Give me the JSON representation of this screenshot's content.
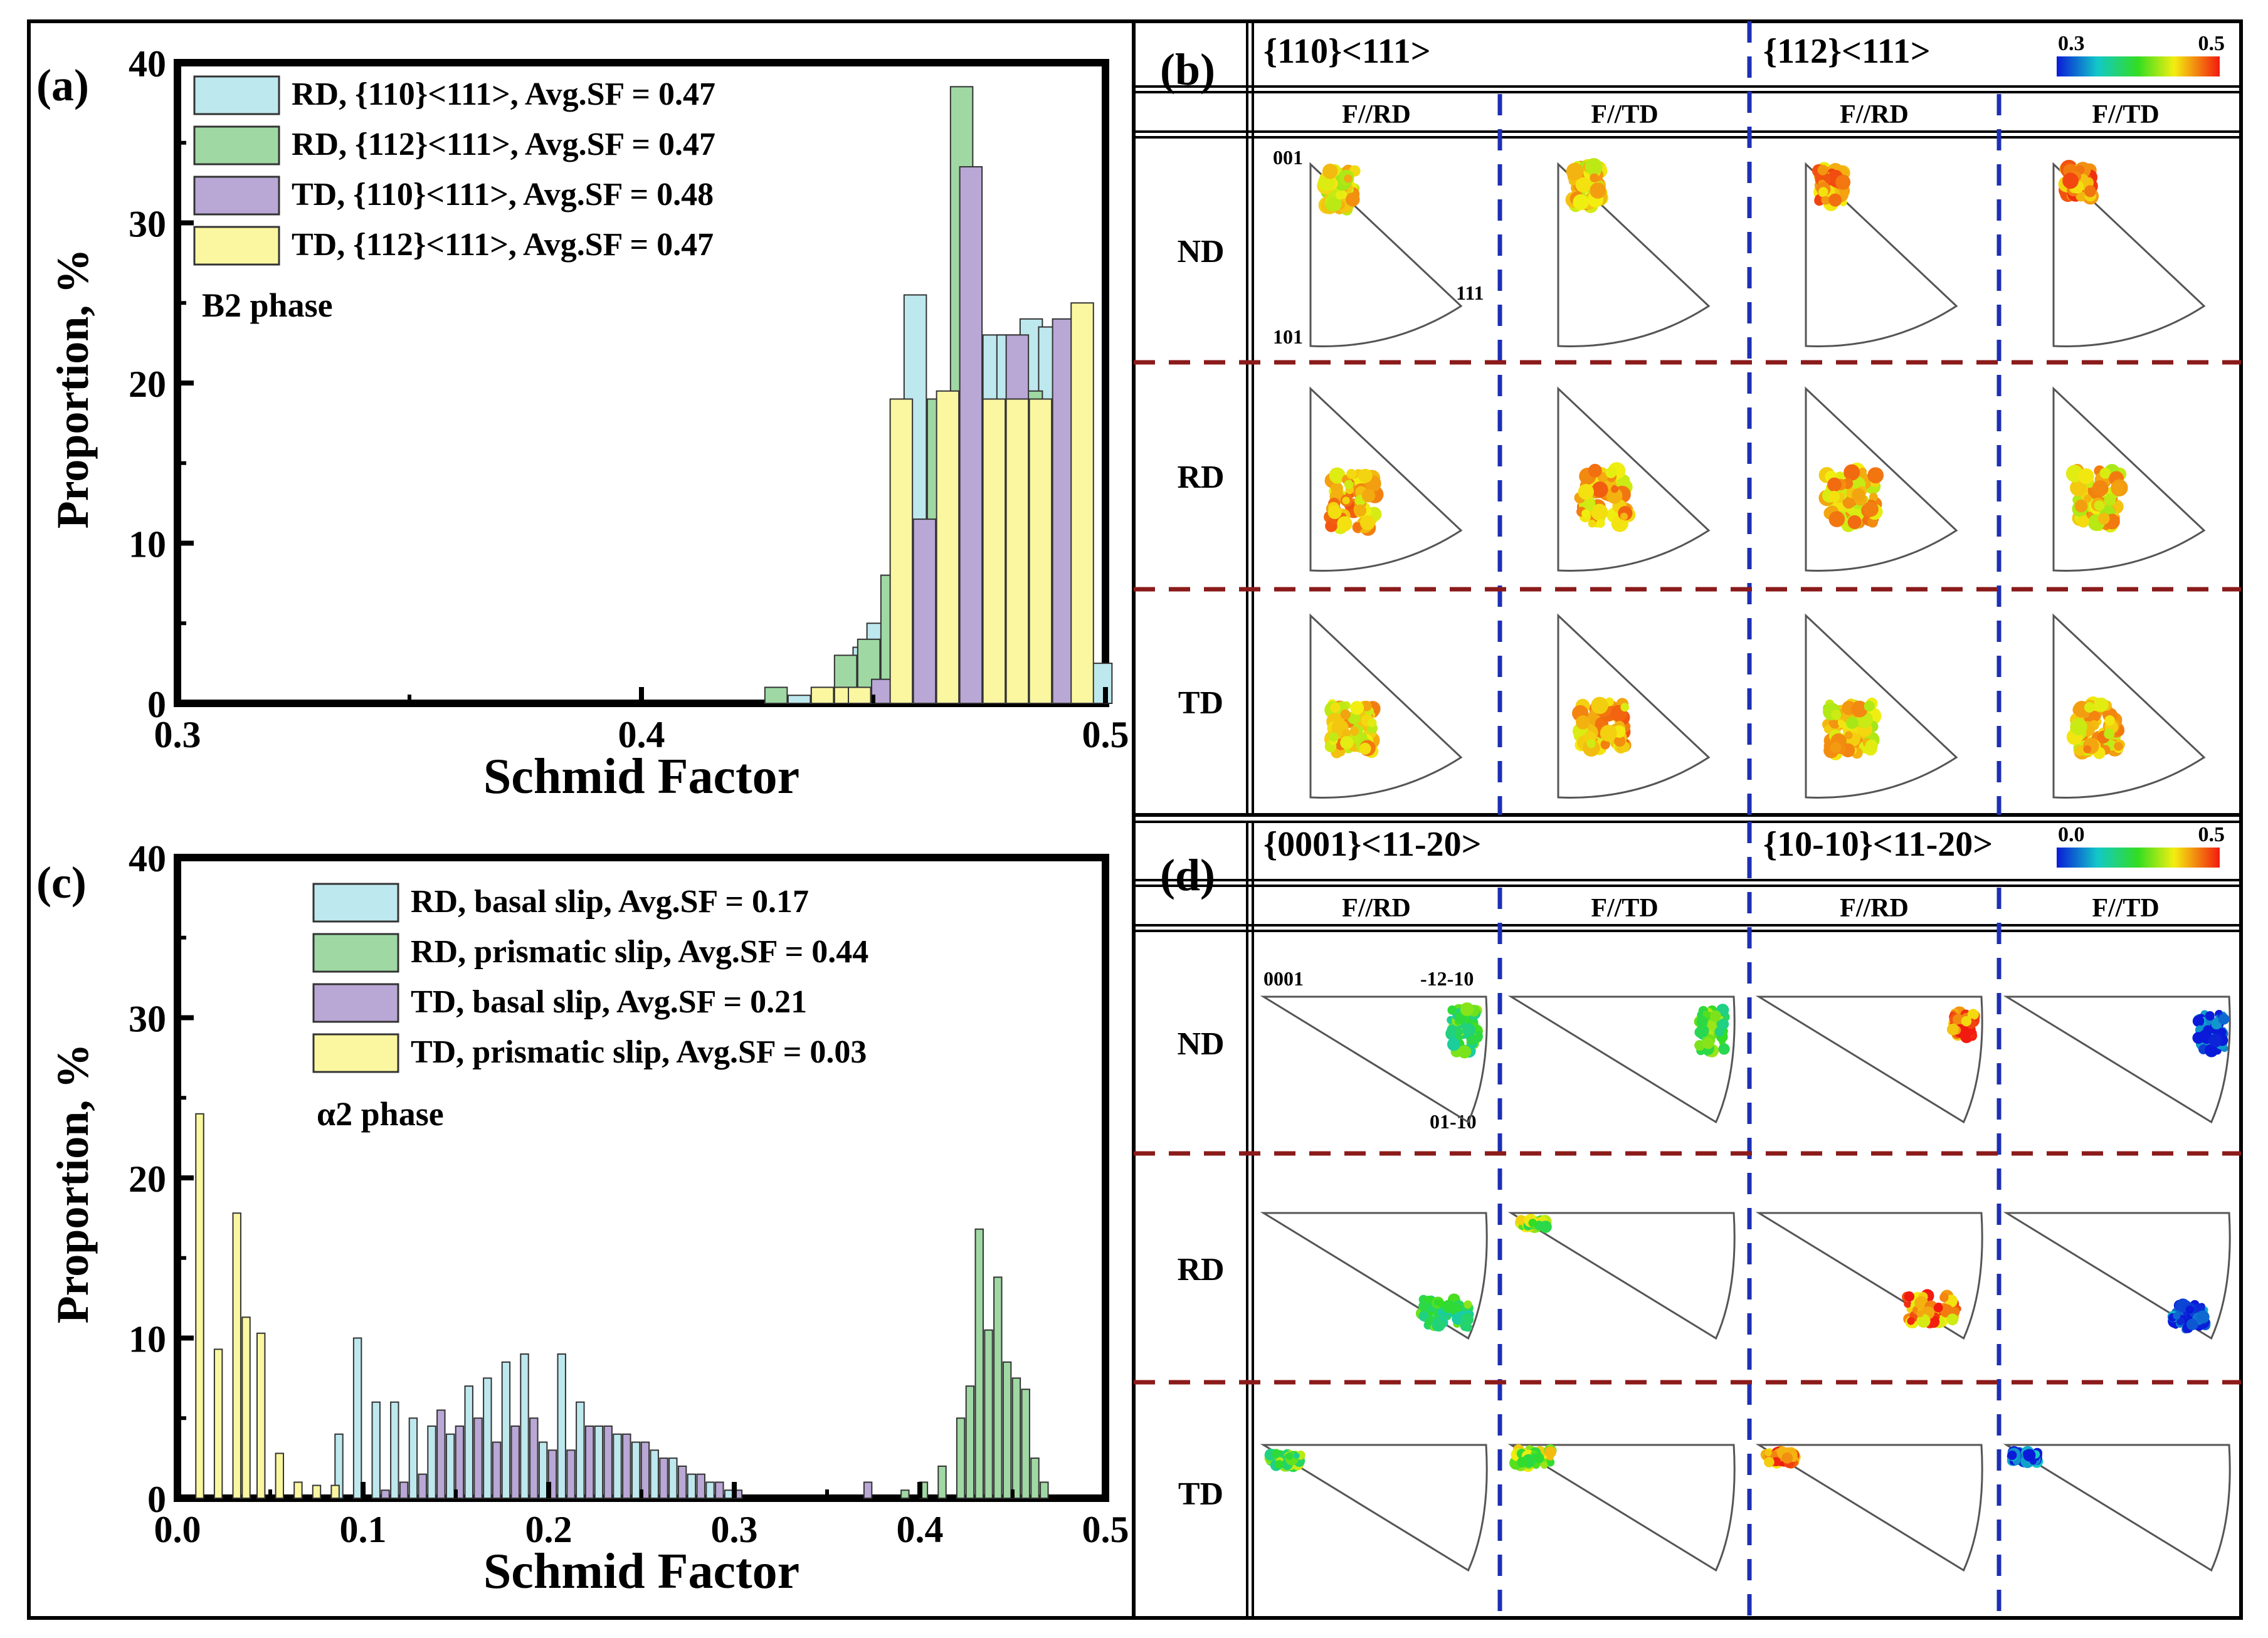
{
  "colors": {
    "cyan": "#bde8ee",
    "green": "#9fd8a3",
    "purple": "#b9a7d6",
    "yellow": "#fbf7a0",
    "red_dash": "#8b1a1a",
    "blue_dash": "#1c2fb5"
  },
  "chart_data": [
    {
      "panel": "(a)",
      "type": "bar",
      "xlabel": "Schmid Factor",
      "ylabel": "Proportion, %",
      "xlim": [
        0.3,
        0.5
      ],
      "ylim": [
        0,
        40
      ],
      "xticks": [
        "0.3",
        "0.4",
        "0.5"
      ],
      "yticks": [
        "0",
        "10",
        "20",
        "30",
        "40"
      ],
      "annotation": "B2 phase",
      "bin_width": 0.0048,
      "series": [
        {
          "name": "RD, {110}<111>, Avg.SF = 0.47",
          "color_key": "cyan",
          "x": [
            0.434,
            0.444,
            0.448,
            0.451,
            0.459,
            0.464,
            0.469,
            0.476,
            0.479,
            0.484,
            0.488,
            0.494,
            0.499
          ],
          "values": [
            0.5,
            1.0,
            3.5,
            5.0,
            25.5,
            12.0,
            6.0,
            23.0,
            23.0,
            24.0,
            23.5,
            9.0,
            2.5
          ]
        },
        {
          "name": "RD, {112}<111>, Avg.SF = 0.47",
          "color_key": "green",
          "x": [
            0.429,
            0.439,
            0.444,
            0.449,
            0.454,
            0.459,
            0.464,
            0.469,
            0.474,
            0.479,
            0.484,
            0.489
          ],
          "values": [
            1.0,
            1.0,
            3.0,
            4.0,
            8.0,
            1.5,
            19.0,
            38.5,
            7.0,
            16.5,
            19.5,
            6.5
          ],
          "note": "interleaved with other series"
        },
        {
          "name": "TD, {110}<111>, Avg.SF = 0.48",
          "color_key": "purple",
          "x": [
            0.452,
            0.461,
            0.471,
            0.481,
            0.491
          ],
          "values": [
            1.5,
            11.5,
            33.5,
            23.0,
            24.0
          ]
        },
        {
          "name": "TD, {112}<111>, Avg.SF = 0.47",
          "color_key": "yellow",
          "x": [
            0.439,
            0.444,
            0.447,
            0.456,
            0.466,
            0.476,
            0.481,
            0.486,
            0.495
          ],
          "values": [
            1.0,
            1.0,
            1.0,
            19.0,
            19.5,
            19.0,
            19.0,
            19.0,
            25.0
          ]
        }
      ]
    },
    {
      "panel": "(c)",
      "type": "bar",
      "xlabel": "Schmid Factor",
      "ylabel": "Proportion, %",
      "xlim": [
        0.0,
        0.5
      ],
      "ylim": [
        0,
        40
      ],
      "xticks": [
        "0.0",
        "0.1",
        "0.2",
        "0.3",
        "0.4",
        "0.5"
      ],
      "yticks": [
        "0",
        "10",
        "20",
        "30",
        "40"
      ],
      "annotation": "α2 phase",
      "bin_width": 0.0042,
      "series": [
        {
          "name": "RD, basal slip, Avg.SF = 0.17",
          "color_key": "cyan",
          "x": [
            0.087,
            0.097,
            0.107,
            0.117,
            0.127,
            0.137,
            0.147,
            0.157,
            0.167,
            0.177,
            0.187,
            0.197,
            0.207,
            0.217,
            0.227,
            0.237,
            0.247,
            0.257,
            0.267,
            0.277,
            0.287,
            0.297
          ],
          "values": [
            4.0,
            10.0,
            6.0,
            6.0,
            5.0,
            4.5,
            4.0,
            7.0,
            7.5,
            8.5,
            9.0,
            3.5,
            9.0,
            6.0,
            4.5,
            4.0,
            3.5,
            3.0,
            2.5,
            1.5,
            1.0,
            0.5
          ]
        },
        {
          "name": "RD, prismatic slip, Avg.SF = 0.44",
          "color_key": "green",
          "x": [
            0.392,
            0.402,
            0.412,
            0.422,
            0.427,
            0.432,
            0.437,
            0.442,
            0.447,
            0.452,
            0.457,
            0.462,
            0.467
          ],
          "values": [
            0.5,
            1.0,
            2.0,
            5.0,
            7.0,
            16.8,
            10.5,
            13.8,
            8.5,
            7.5,
            6.8,
            2.5,
            1.0
          ]
        },
        {
          "name": "TD, basal slip, Avg.SF = 0.21",
          "color_key": "purple",
          "x": [
            0.112,
            0.122,
            0.132,
            0.142,
            0.152,
            0.162,
            0.172,
            0.182,
            0.192,
            0.202,
            0.212,
            0.222,
            0.232,
            0.242,
            0.252,
            0.262,
            0.272,
            0.282,
            0.292,
            0.302,
            0.372
          ],
          "values": [
            0.5,
            1.0,
            1.5,
            5.5,
            4.5,
            5.0,
            3.5,
            4.5,
            5.0,
            3.0,
            3.0,
            4.5,
            4.5,
            4.0,
            3.5,
            2.5,
            2.0,
            1.5,
            1.0,
            0.5,
            1.0
          ]
        },
        {
          "name": "TD, prismatic slip, Avg.SF = 0.03",
          "color_key": "yellow",
          "x": [
            0.012,
            0.022,
            0.032,
            0.037,
            0.045,
            0.055,
            0.065,
            0.075,
            0.085
          ],
          "values": [
            24.0,
            9.3,
            17.8,
            11.3,
            10.3,
            2.8,
            1.0,
            0.8,
            0.8
          ]
        }
      ]
    }
  ],
  "panel_b": {
    "label": "(b)",
    "system_left": "{110}<111>",
    "system_right": "{112}<111>",
    "colorbar_min": "0.3",
    "colorbar_max": "0.5",
    "col_headers": [
      "F//RD",
      "F//TD",
      "F//RD",
      "F//TD"
    ],
    "row_headers": [
      "ND",
      "RD",
      "TD"
    ],
    "corner_labels": [
      "001",
      "111",
      "101"
    ]
  },
  "panel_d": {
    "label": "(d)",
    "system_left": "{0001}<11-20>",
    "system_right": "{10-10}<11-20>",
    "colorbar_min": "0.0",
    "colorbar_max": "0.5",
    "col_headers": [
      "F//RD",
      "F//TD",
      "F//RD",
      "F//TD"
    ],
    "row_headers": [
      "ND",
      "RD",
      "TD"
    ],
    "corner_labels": [
      "0001",
      "-12-10",
      "01-10"
    ]
  }
}
